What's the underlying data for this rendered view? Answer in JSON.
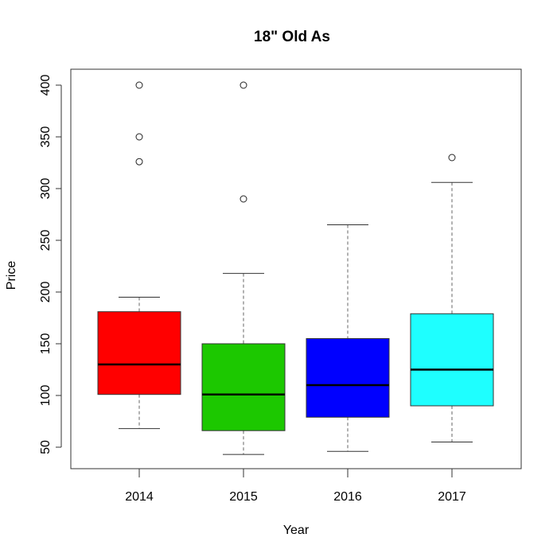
{
  "chart_data": {
    "type": "boxplot",
    "title": "18\" Old As",
    "xlabel": "Year",
    "ylabel": "Price",
    "categories": [
      "2014",
      "2015",
      "2016",
      "2017"
    ],
    "y_ticks": [
      50,
      100,
      150,
      200,
      250,
      300,
      350,
      400
    ],
    "ylim": [
      27,
      415
    ],
    "grid": false,
    "legend": null,
    "series": [
      {
        "name": "2014",
        "color": "#ff0000",
        "whisker_low": 68,
        "q1": 101,
        "median": 130,
        "q3": 181,
        "whisker_high": 195,
        "outliers": [
          326,
          350,
          400
        ]
      },
      {
        "name": "2015",
        "color": "#1cc800",
        "whisker_low": 43,
        "q1": 66,
        "median": 101,
        "q3": 150,
        "whisker_high": 218,
        "outliers": [
          290,
          400
        ]
      },
      {
        "name": "2016",
        "color": "#0000ff",
        "whisker_low": 46,
        "q1": 79,
        "median": 110,
        "q3": 155,
        "whisker_high": 265,
        "outliers": []
      },
      {
        "name": "2017",
        "color": "#1effff",
        "whisker_low": 55,
        "q1": 90,
        "median": 125,
        "q3": 179,
        "whisker_high": 306,
        "outliers": [
          330
        ]
      }
    ]
  }
}
